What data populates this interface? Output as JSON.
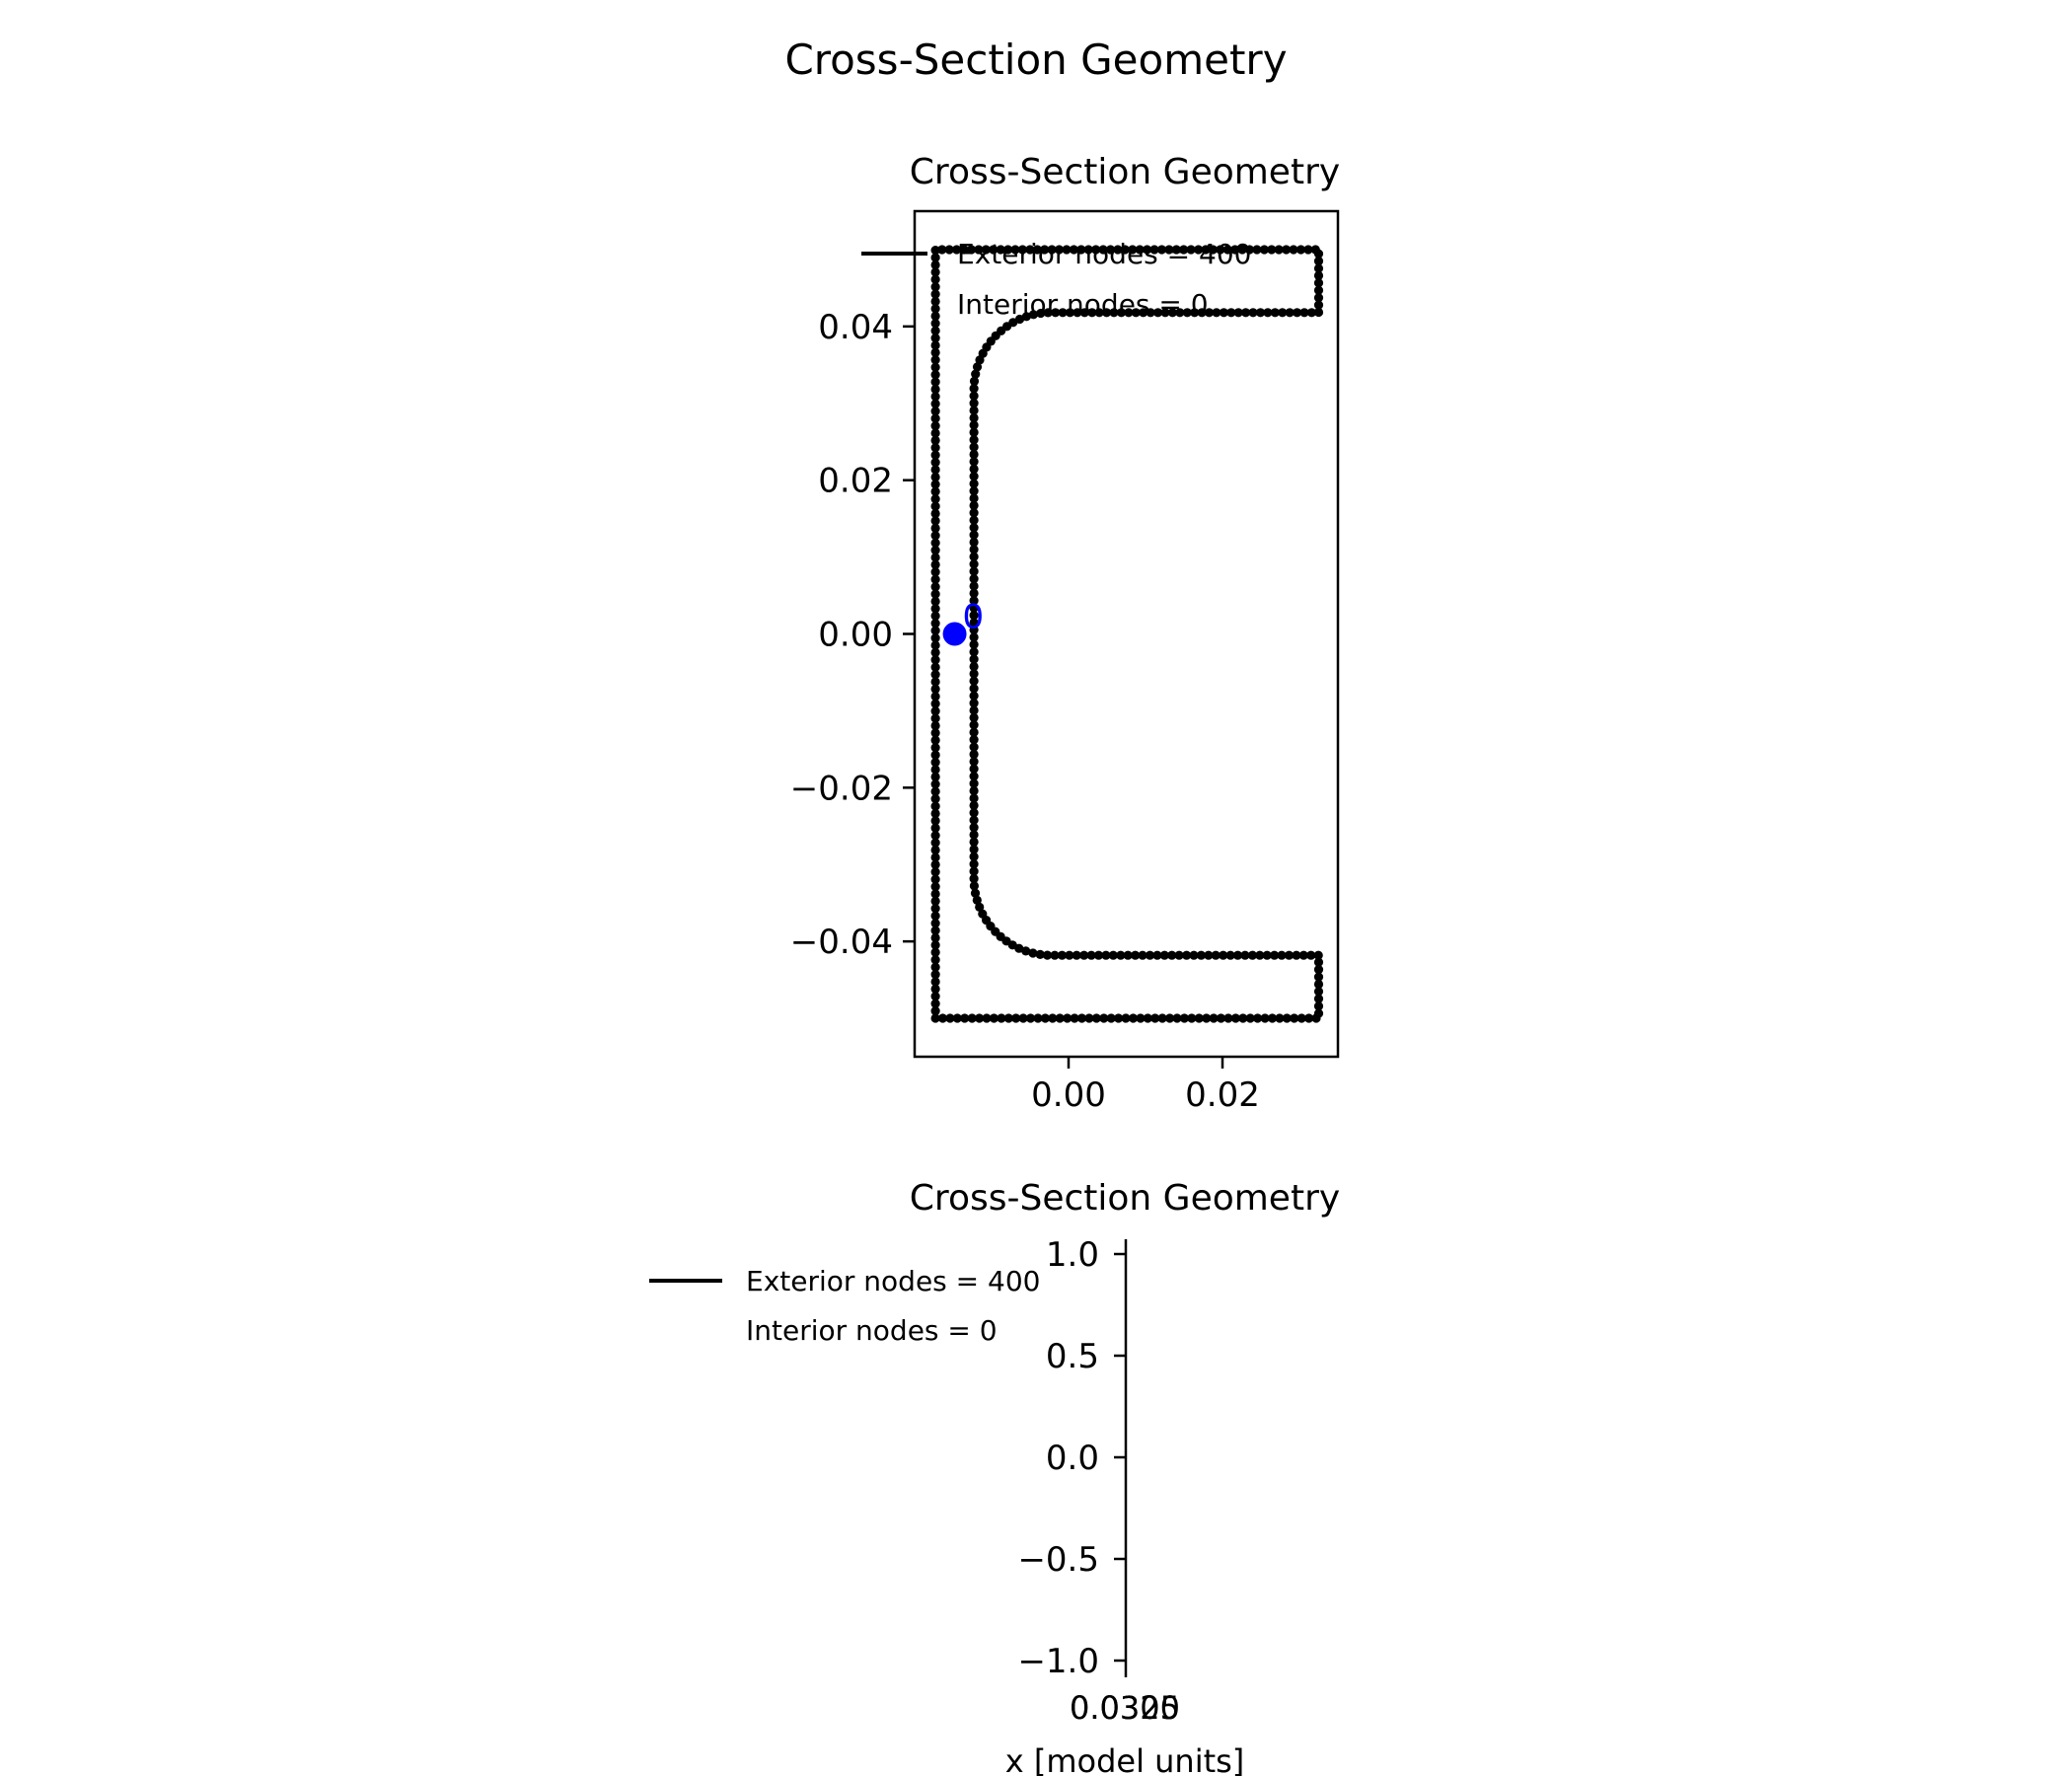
{
  "figure": {
    "suptitle": "Cross-Section Geometry"
  },
  "chart_data": [
    {
      "type": "scatter",
      "title": "Cross-Section Geometry",
      "xlabel": "",
      "ylabel": "",
      "xlim": [
        -0.02,
        0.035
      ],
      "ylim": [
        -0.055,
        0.055
      ],
      "xticks": [
        0.0,
        0.02
      ],
      "xtick_labels": [
        "0.00",
        "0.02"
      ],
      "yticks": [
        -0.04,
        -0.02,
        0.0,
        0.02,
        0.04
      ],
      "ytick_labels": [
        "−0.04",
        "−0.02",
        "0.00",
        "0.02",
        "0.04"
      ],
      "legend": {
        "placement": "top-left",
        "entries": [
          "Exterior nodes = 400",
          "Interior nodes = 0"
        ]
      },
      "section": {
        "flange_width": 0.0498,
        "depth": 0.1,
        "web_thickness": 0.005,
        "flange_thickness": 0.0082,
        "fillet_radius": 0.01,
        "x_back": -0.0173,
        "node_count": 400
      },
      "centroid": {
        "x": -0.0148,
        "y": 0.0,
        "label": "0",
        "color": "#0000ff"
      },
      "grid": false
    },
    {
      "type": "scatter",
      "title": "Cross-Section Geometry",
      "xlabel": "x [model units]",
      "ylabel": "",
      "ylim": [
        -1.0,
        1.0
      ],
      "yticks": [
        -1.0,
        -0.5,
        0.0,
        0.5,
        1.0
      ],
      "ytick_labels": [
        "−1.0",
        "−0.5",
        "0.0",
        "0.5",
        "1.0"
      ],
      "xtick_labels": [
        "0.0300",
        "0.0325"
      ],
      "legend": {
        "placement": "outside-left",
        "entries": [
          "Exterior nodes = 400",
          "Interior nodes = 0"
        ]
      },
      "grid": false
    }
  ]
}
